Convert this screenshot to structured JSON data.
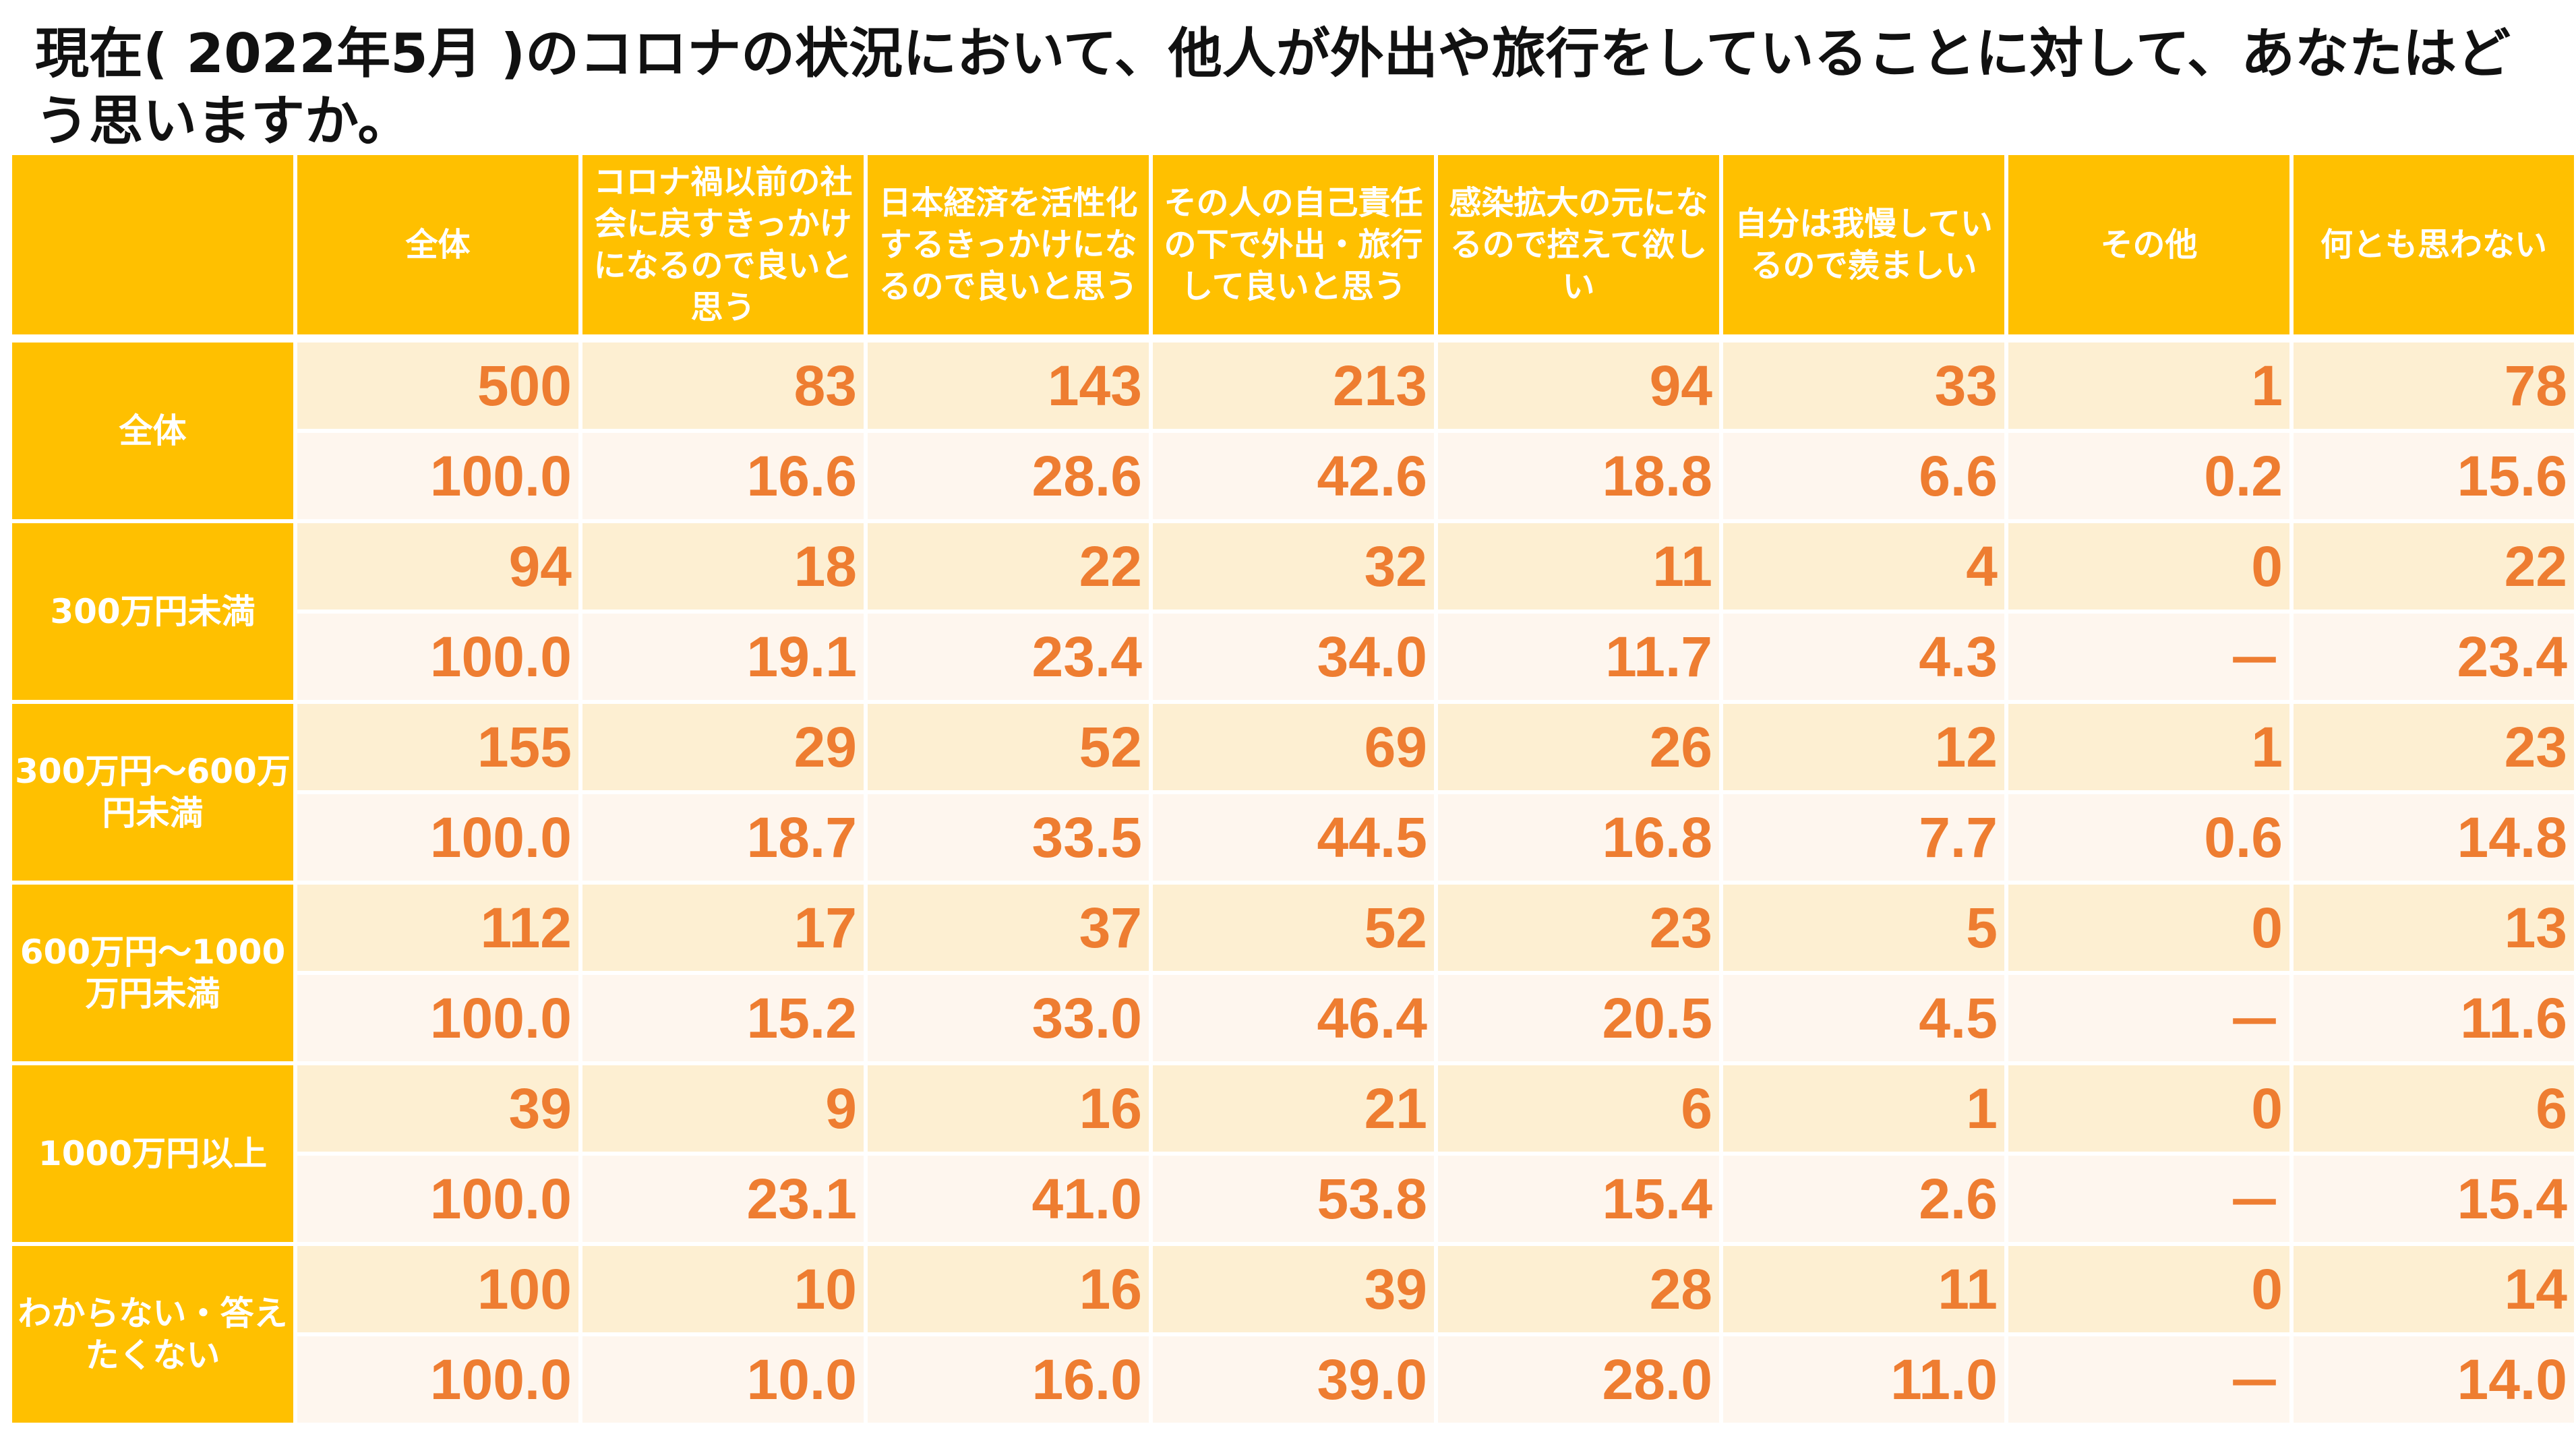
{
  "title": "現在( 2022年5月 )のコロナの状況において、他人が外出や旅行をしていることに対して、あなたはどう思いますか。",
  "header": {
    "corner": "",
    "columns": [
      "全体",
      "コロナ禍以前の社会に戻すきっかけになるので良いと思う",
      "日本経済を活性化するきっかけになるので良いと思う",
      "その人の自己責任の下で外出・旅行して良いと思う",
      "感染拡大の元になるので控えて欲しい",
      "自分は我慢しているので羨ましい",
      "その他",
      "何とも思わない"
    ]
  },
  "rows": [
    {
      "label": "全体",
      "counts": [
        "500",
        "83",
        "143",
        "213",
        "94",
        "33",
        "1",
        "78"
      ],
      "percents": [
        "100.0",
        "16.6",
        "28.6",
        "42.6",
        "18.8",
        "6.6",
        "0.2",
        "15.6"
      ]
    },
    {
      "label": "300万円未満",
      "counts": [
        "94",
        "18",
        "22",
        "32",
        "11",
        "4",
        "0",
        "22"
      ],
      "percents": [
        "100.0",
        "19.1",
        "23.4",
        "34.0",
        "11.7",
        "4.3",
        "－",
        "23.4"
      ]
    },
    {
      "label": "300万円～600万円未満",
      "counts": [
        "155",
        "29",
        "52",
        "69",
        "26",
        "12",
        "1",
        "23"
      ],
      "percents": [
        "100.0",
        "18.7",
        "33.5",
        "44.5",
        "16.8",
        "7.7",
        "0.6",
        "14.8"
      ]
    },
    {
      "label": "600万円～1000万円未満",
      "counts": [
        "112",
        "17",
        "37",
        "52",
        "23",
        "5",
        "0",
        "13"
      ],
      "percents": [
        "100.0",
        "15.2",
        "33.0",
        "46.4",
        "20.5",
        "4.5",
        "－",
        "11.6"
      ]
    },
    {
      "label": "1000万円以上",
      "counts": [
        "39",
        "9",
        "16",
        "21",
        "6",
        "1",
        "0",
        "6"
      ],
      "percents": [
        "100.0",
        "23.1",
        "41.0",
        "53.8",
        "15.4",
        "2.6",
        "－",
        "15.4"
      ]
    },
    {
      "label": "わからない・答えたくない",
      "counts": [
        "100",
        "10",
        "16",
        "39",
        "28",
        "11",
        "0",
        "14"
      ],
      "percents": [
        "100.0",
        "10.0",
        "16.0",
        "39.0",
        "28.0",
        "11.0",
        "－",
        "14.0"
      ]
    }
  ],
  "colors": {
    "header_bg": "#FFC000",
    "header_text": "#ffffff",
    "value_text": "#EE7D31",
    "count_row_bg": "#FDEFD2",
    "percent_row_bg": "#FEF6EE"
  }
}
